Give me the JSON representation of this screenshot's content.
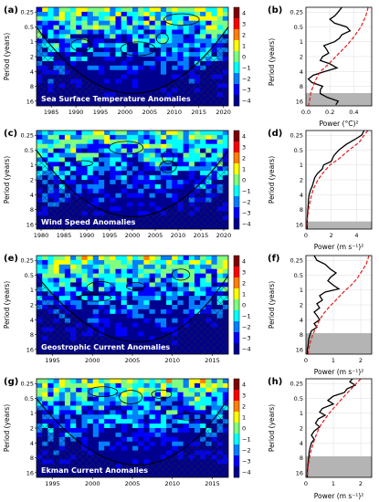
{
  "colors": {
    "colormap": [
      "#00008f",
      "#0000ff",
      "#0080ff",
      "#00ffff",
      "#80ff80",
      "#ffff00",
      "#ff8000",
      "#ff0000",
      "#800000"
    ],
    "global_line": "#000000",
    "red_noise_line": "#e41a1c",
    "shade": "#b4b4b4"
  },
  "chart_data": [
    {
      "type": "heatmap",
      "panel": "(a)",
      "title": "Sea Surface Temperature Anomalies",
      "ylabel": "Period (years)",
      "x_ticks": [
        "1985",
        "1990",
        "1995",
        "2000",
        "2005",
        "2010",
        "2015",
        "2020"
      ],
      "x_range": [
        1982,
        2021
      ],
      "y_ticks": [
        "0.25",
        "0.5",
        "1",
        "2",
        "4",
        "8",
        "16"
      ],
      "y_range": [
        0.2,
        20
      ],
      "y_scale": "log2",
      "colorbar": {
        "ticks": [
          "4",
          "3",
          "2",
          "1",
          "0",
          "−1",
          "−2",
          "−3",
          "−4"
        ],
        "range": [
          -4,
          4
        ]
      }
    },
    {
      "type": "line",
      "panel": "(b)",
      "xlabel": "Power (°C)²",
      "ylabel": "Period (years)",
      "x_ticks": [
        "0.0",
        "0.2",
        "0.4"
      ],
      "x_range": [
        0,
        0.55
      ],
      "y_ticks": [
        "0.25",
        "0.5",
        "1",
        "2",
        "4",
        "8",
        "16"
      ],
      "y_scale": "log2",
      "shaded_period_min": 11,
      "series": [
        {
          "period": [
            0.2,
            0.25,
            0.3,
            0.35,
            0.42,
            0.5,
            0.6,
            0.72,
            0.85,
            1.0,
            1.2,
            1.4,
            1.7,
            2.0,
            2.4,
            2.8,
            3.4,
            4.0,
            4.8,
            5.7,
            6.7,
            8,
            9.5,
            11.3,
            13.5,
            16,
            19
          ],
          "power": [
            0.3,
            0.27,
            0.24,
            0.2,
            0.24,
            0.34,
            0.37,
            0.3,
            0.28,
            0.24,
            0.15,
            0.17,
            0.19,
            0.14,
            0.12,
            0.2,
            0.26,
            0.16,
            0.06,
            0.02,
            0.05,
            0.14,
            0.12,
            0.12,
            0.18,
            0.27,
            0.25
          ]
        },
        {
          "period": [
            0.2,
            0.3,
            0.5,
            0.8,
            1.2,
            2,
            3,
            4,
            6,
            8,
            11,
            16,
            20
          ],
          "power": [
            0.52,
            0.5,
            0.46,
            0.4,
            0.34,
            0.25,
            0.18,
            0.12,
            0.08,
            0.06,
            0.04,
            0.03,
            0.02
          ]
        }
      ]
    },
    {
      "type": "heatmap",
      "panel": "(c)",
      "title": "Wind Speed Anomalies",
      "ylabel": "Period (years)",
      "x_ticks": [
        "1980",
        "1985",
        "1990",
        "1995",
        "2000",
        "2005",
        "2010",
        "2015",
        "2020"
      ],
      "x_range": [
        1979,
        2021
      ],
      "y_ticks": [
        "0.25",
        "0.5",
        "1",
        "2",
        "4",
        "8",
        "16"
      ],
      "y_range": [
        0.2,
        20
      ],
      "y_scale": "log2",
      "colorbar": {
        "ticks": [
          "4",
          "3",
          "2",
          "1",
          "0",
          "−1",
          "−2",
          "−3",
          "−4"
        ],
        "range": [
          -4,
          4
        ]
      }
    },
    {
      "type": "line",
      "panel": "(d)",
      "xlabel": "Power (m s⁻¹)²",
      "ylabel": "Period (years)",
      "x_ticks": [
        "0",
        "2",
        "4"
      ],
      "x_range": [
        0,
        5.2
      ],
      "y_ticks": [
        "0.25",
        "0.5",
        "1",
        "2",
        "4",
        "8",
        "16"
      ],
      "y_scale": "log2",
      "shaded_period_min": 14,
      "series": [
        {
          "period": [
            0.2,
            0.25,
            0.3,
            0.38,
            0.5,
            0.65,
            0.85,
            1.0,
            1.2,
            1.5,
            1.8,
            2.2,
            2.7,
            3.3,
            4,
            5,
            6.5,
            8,
            10,
            13,
            16,
            20
          ],
          "power": [
            4.6,
            4.4,
            3.9,
            3.2,
            2.6,
            2.2,
            2.0,
            1.4,
            1.3,
            0.9,
            0.7,
            0.6,
            0.5,
            0.35,
            0.25,
            0.2,
            0.18,
            0.15,
            0.12,
            0.1,
            0.1,
            0.1
          ]
        },
        {
          "period": [
            0.2,
            0.25,
            0.35,
            0.5,
            0.75,
            1,
            1.5,
            2,
            3,
            4,
            6,
            8,
            12,
            16,
            20
          ],
          "power": [
            4.9,
            4.6,
            4.2,
            3.4,
            2.6,
            1.9,
            1.3,
            0.95,
            0.6,
            0.45,
            0.3,
            0.2,
            0.12,
            0.08,
            0.05
          ]
        }
      ]
    },
    {
      "type": "heatmap",
      "panel": "(e)",
      "title": "Geostrophic Current Anomalies",
      "ylabel": "Period (years)",
      "x_ticks": [
        "1995",
        "2000",
        "2005",
        "2010",
        "2015"
      ],
      "x_range": [
        1993,
        2017
      ],
      "y_ticks": [
        "0.25",
        "0.5",
        "1",
        "2",
        "4",
        "8",
        "16"
      ],
      "y_range": [
        0.2,
        20
      ],
      "y_scale": "log2",
      "colorbar": {
        "ticks": [
          "4",
          "3",
          "2",
          "1",
          "0",
          "−1",
          "−2",
          "−3",
          "−4"
        ],
        "range": [
          -4,
          4
        ]
      }
    },
    {
      "type": "line",
      "panel": "(f)",
      "xlabel": "Power (m s⁻¹)²",
      "ylabel": "Period (years)",
      "x_ticks": [
        "0",
        "1",
        "2"
      ],
      "x_range": [
        0,
        2.4
      ],
      "y_ticks": [
        "0.25",
        "0.5",
        "1",
        "2",
        "4",
        "8",
        "16"
      ],
      "y_scale": "log2",
      "shaded_period_min": 7.5,
      "series": [
        {
          "period": [
            0.2,
            0.25,
            0.3,
            0.38,
            0.45,
            0.55,
            0.65,
            0.8,
            0.95,
            1.1,
            1.3,
            1.6,
            1.9,
            2.3,
            2.8,
            3.3,
            4,
            4.8,
            5.7,
            6.7,
            8,
            10,
            13,
            16,
            20
          ],
          "power": [
            0.3,
            0.4,
            0.7,
            0.9,
            1.1,
            0.9,
            0.8,
            1.0,
            1.2,
            0.7,
            0.5,
            0.6,
            0.4,
            0.5,
            0.3,
            0.4,
            0.5,
            0.3,
            0.4,
            0.2,
            0.15,
            0.1,
            0.08,
            0.05,
            0.05
          ]
        },
        {
          "period": [
            0.2,
            0.3,
            0.45,
            0.6,
            0.8,
            1,
            1.3,
            1.7,
            2.2,
            3,
            4,
            6,
            8,
            12,
            16,
            20
          ],
          "power": [
            2.3,
            2.2,
            2.0,
            1.85,
            1.65,
            1.45,
            1.25,
            1.05,
            0.85,
            0.65,
            0.5,
            0.35,
            0.25,
            0.15,
            0.1,
            0.08
          ]
        }
      ]
    },
    {
      "type": "heatmap",
      "panel": "(g)",
      "title": "Ekman Current Anomalies",
      "ylabel": "Period (years)",
      "x_ticks": [
        "1995",
        "2000",
        "2005",
        "2010",
        "2015"
      ],
      "x_range": [
        1993,
        2017
      ],
      "y_ticks": [
        "0.25",
        "0.5",
        "1",
        "2",
        "4",
        "8",
        "16"
      ],
      "y_range": [
        0.2,
        20
      ],
      "y_scale": "log2",
      "colorbar": {
        "ticks": [
          "4",
          "3",
          "2",
          "1",
          "0",
          "−1",
          "−2",
          "−3",
          "−4"
        ],
        "range": [
          -4,
          4
        ]
      }
    },
    {
      "type": "line",
      "panel": "(h)",
      "xlabel": "Power (m s⁻¹)²",
      "ylabel": "Period (years)",
      "x_ticks": [
        "0",
        "1",
        "2"
      ],
      "x_range": [
        0,
        2.4
      ],
      "y_ticks": [
        "0.25",
        "0.5",
        "1",
        "2",
        "4",
        "8",
        "16"
      ],
      "y_scale": "log2",
      "shaded_period_min": 7.5,
      "series": [
        {
          "period": [
            0.2,
            0.23,
            0.27,
            0.32,
            0.38,
            0.45,
            0.55,
            0.65,
            0.8,
            0.95,
            1.1,
            1.3,
            1.6,
            1.9,
            2.3,
            2.8,
            3.4,
            4,
            5,
            6,
            8,
            10,
            13,
            16,
            20
          ],
          "power": [
            1.7,
            1.6,
            1.8,
            1.5,
            1.4,
            1.0,
            0.8,
            1.0,
            0.6,
            0.5,
            0.7,
            0.45,
            0.35,
            0.5,
            0.3,
            0.2,
            0.3,
            0.2,
            0.15,
            0.12,
            0.1,
            0.08,
            0.06,
            0.05,
            0.05
          ]
        },
        {
          "period": [
            0.2,
            0.3,
            0.45,
            0.6,
            0.8,
            1,
            1.3,
            1.7,
            2.2,
            3,
            4,
            6,
            8,
            12,
            16,
            20
          ],
          "power": [
            2.0,
            1.7,
            1.4,
            1.2,
            1.0,
            0.85,
            0.7,
            0.55,
            0.45,
            0.35,
            0.27,
            0.18,
            0.13,
            0.08,
            0.06,
            0.04
          ]
        }
      ]
    }
  ]
}
